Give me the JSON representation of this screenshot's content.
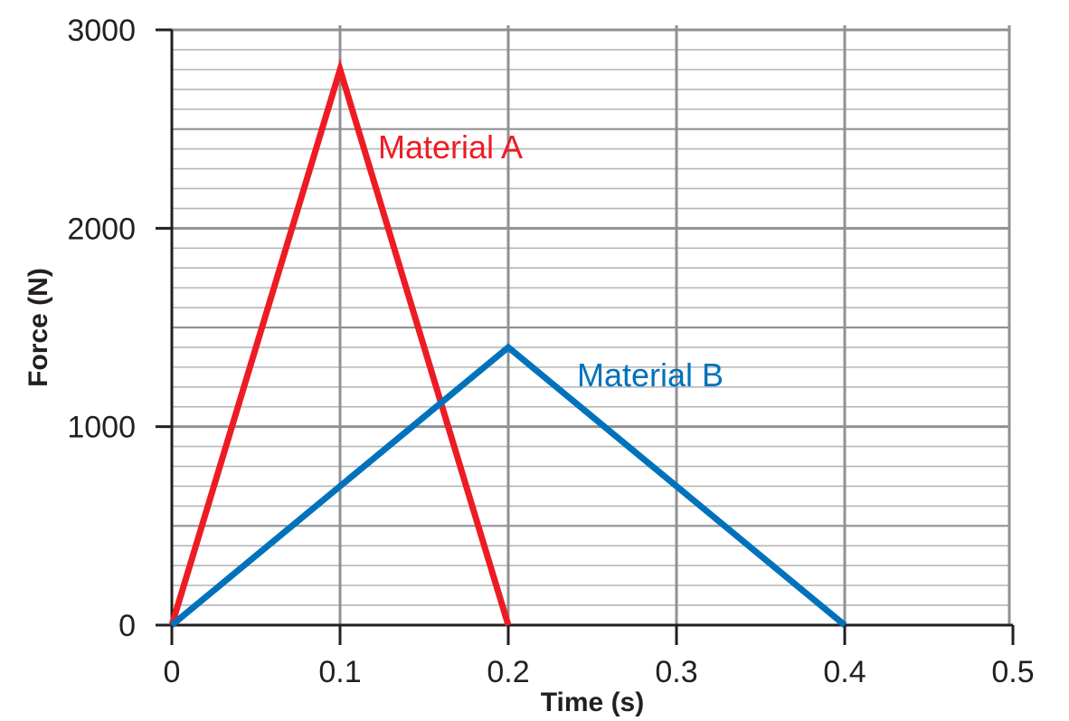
{
  "chart_data": {
    "type": "line",
    "xlabel": "Time (s)",
    "ylabel": "Force (N)",
    "xlim": [
      0,
      0.5
    ],
    "ylim": [
      0,
      3000
    ],
    "x_ticks": [
      0,
      0.1,
      0.2,
      0.3,
      0.4,
      0.5
    ],
    "x_tick_labels": [
      "0",
      "0.1",
      "0.2",
      "0.3",
      "0.4",
      "0.5"
    ],
    "y_ticks": [
      0,
      1000,
      2000,
      3000
    ],
    "y_tick_labels": [
      "0",
      "1000",
      "2000",
      "3000"
    ],
    "y_minor_step": 100,
    "y_medium_step": 500,
    "grid": true,
    "series": [
      {
        "name": "Material A",
        "color": "#ed1c24",
        "x": [
          0,
          0.1,
          0.2
        ],
        "y": [
          0,
          2800,
          0
        ]
      },
      {
        "name": "Material B",
        "color": "#0072bc",
        "x": [
          0,
          0.2,
          0.4
        ],
        "y": [
          0,
          1400,
          0
        ]
      }
    ]
  }
}
